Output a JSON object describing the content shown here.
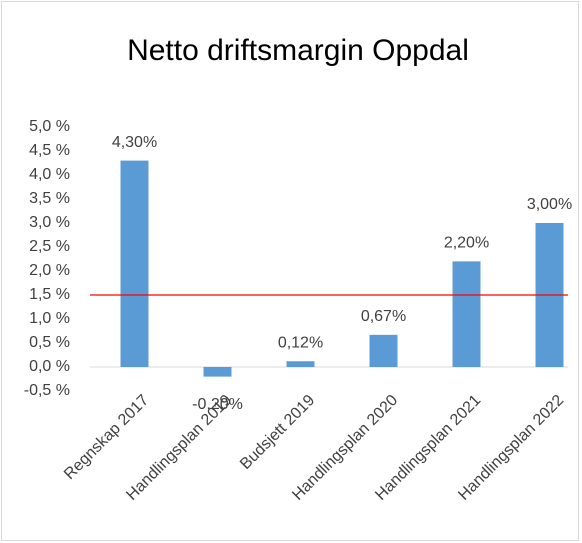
{
  "chart_data": {
    "type": "bar",
    "title": "Netto driftsmargin Oppdal",
    "categories": [
      "Regnskap 2017",
      "Handlingsplan 2019",
      "Budsjett 2019",
      "Handlingsplan 2020",
      "Handlingsplan 2021",
      "Handlingsplan 2022"
    ],
    "values": [
      4.3,
      -0.2,
      0.12,
      0.67,
      2.2,
      3.0
    ],
    "value_labels": [
      "4,30%",
      "-0,20%",
      "0,12%",
      "0,67%",
      "2,20%",
      "3,00%"
    ],
    "color": "#5b9bd5",
    "ylim": [
      -0.5,
      5.0
    ],
    "yticks": [
      {
        "value": -0.5,
        "label": "-0,5 %"
      },
      {
        "value": 0,
        "label": "0,0 %"
      },
      {
        "value": 0.5,
        "label": "0,5 %"
      },
      {
        "value": 1.0,
        "label": "1,0 %"
      },
      {
        "value": 1.5,
        "label": "1,5 %"
      },
      {
        "value": 2.0,
        "label": "2,0 %"
      },
      {
        "value": 2.5,
        "label": "2,5 %"
      },
      {
        "value": 3.0,
        "label": "3,0 %"
      },
      {
        "value": 3.5,
        "label": "3,5 %"
      },
      {
        "value": 4.0,
        "label": "4,0 %"
      },
      {
        "value": 4.5,
        "label": "4,5 %"
      },
      {
        "value": 5.0,
        "label": "5,0 %"
      }
    ],
    "reference_line": {
      "value": 1.5,
      "color": "#ff0000"
    }
  }
}
